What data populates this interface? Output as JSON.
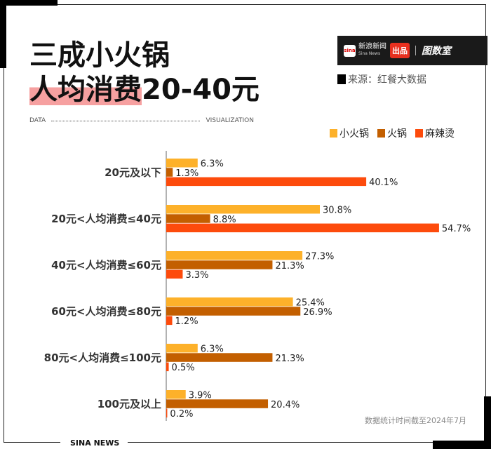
{
  "title": {
    "line1": "三成小火锅",
    "line2_highlight": "人均消费",
    "line2_rest": "20-40元"
  },
  "subline": {
    "left": "DATA",
    "right": "VISUALIZATION"
  },
  "brand": {
    "logo": "sina",
    "name": "新浪新闻",
    "name_en": "Sina News",
    "badge": "出品",
    "partner": "图数室"
  },
  "source": "来源：红餐大数据",
  "footnote": "数据统计时间截至2024年7月",
  "bottom_label": "SINA NEWS",
  "colors": {
    "小火锅": "#fdb12a",
    "火锅": "#c35f00",
    "麻辣烫": "#fd4b0c",
    "highlight": "#f6a0a0"
  },
  "chart_data": {
    "type": "bar",
    "orientation": "horizontal",
    "categories": [
      "20元及以下",
      "20元<人均消费≤40元",
      "40元<人均消费≤60元",
      "60元<人均消费≤80元",
      "80元<人均消费≤100元",
      "100元及以上"
    ],
    "series": [
      {
        "name": "小火锅",
        "values": [
          6.3,
          30.8,
          27.3,
          25.4,
          6.3,
          3.9
        ]
      },
      {
        "name": "火锅",
        "values": [
          1.3,
          8.8,
          21.3,
          26.9,
          21.3,
          20.4
        ]
      },
      {
        "name": "麻辣烫",
        "values": [
          40.1,
          54.7,
          3.3,
          1.2,
          0.5,
          0.2
        ]
      }
    ],
    "unit": "%",
    "legend": "top-right",
    "grid": false
  }
}
